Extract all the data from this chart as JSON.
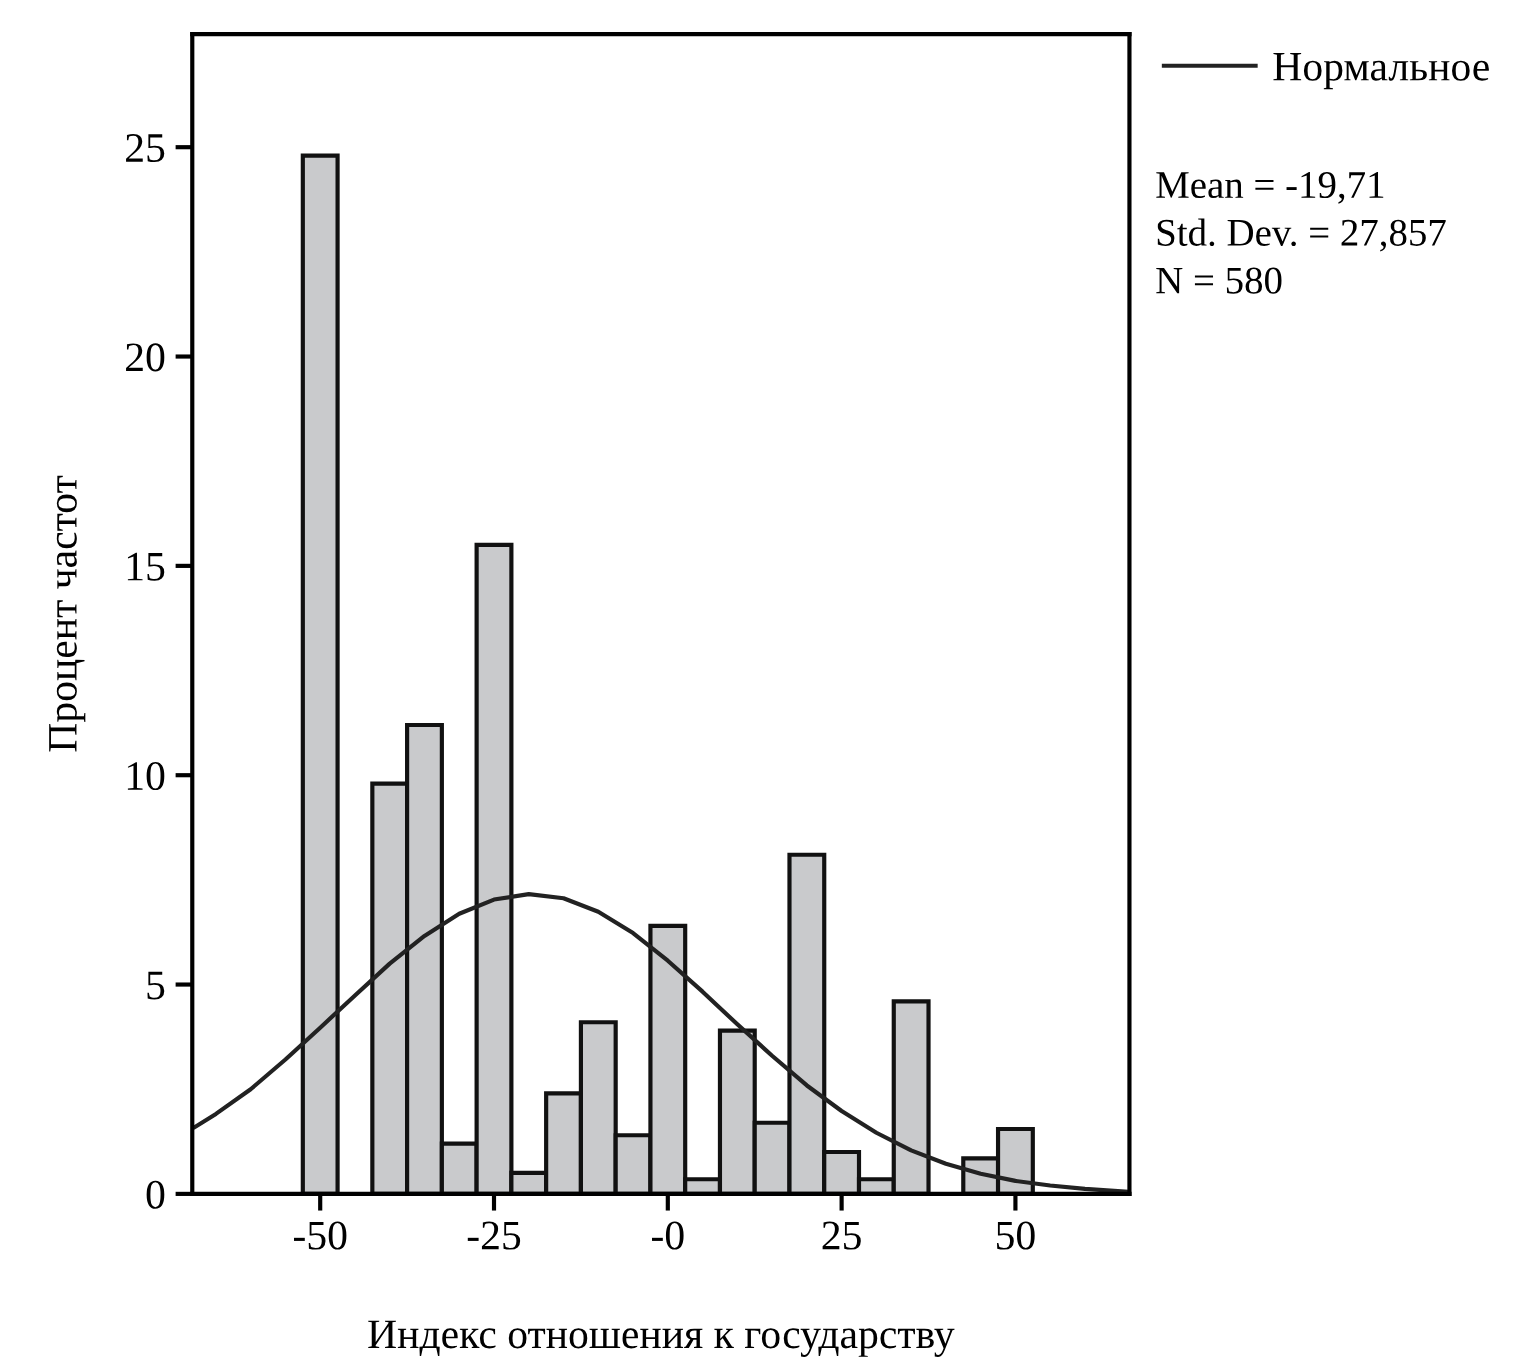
{
  "chart_data": {
    "type": "histogram",
    "xlabel": "Индекс отношения к государству",
    "ylabel": "Процент частот",
    "bins": [
      -52.5,
      -47.5,
      -42.5,
      -37.5,
      -32.5,
      -27.5,
      -22.5,
      -17.5,
      -12.5,
      -7.5,
      -2.5,
      2.5,
      7.5,
      12.5,
      17.5,
      22.5,
      27.5,
      32.5,
      37.5,
      42.5,
      47.5,
      52.5
    ],
    "series": [
      {
        "color": "#c9cacc",
        "values": [
          24.8,
          null,
          9.8,
          11.2,
          1.2,
          15.5,
          0.5,
          2.4,
          4.1,
          1.4,
          6.4,
          0.35,
          3.9,
          1.7,
          8.1,
          1.0,
          0.35,
          4.6,
          null,
          0.85,
          1.55
        ]
      },
      {
        "type": "line",
        "name": "Нормальное",
        "color": "#222222",
        "x": [
          -68,
          -65,
          -60,
          -55,
          -50,
          -45,
          -40,
          -35,
          -30,
          -25,
          -20,
          -15,
          -10,
          -5,
          0,
          5,
          10,
          15,
          20,
          25,
          30,
          35,
          40,
          45,
          50,
          55,
          60,
          66
        ],
        "values": [
          1.6,
          1.91,
          2.5,
          3.21,
          3.97,
          4.74,
          5.5,
          6.16,
          6.69,
          7.03,
          7.16,
          7.06,
          6.74,
          6.23,
          5.57,
          4.83,
          4.05,
          3.3,
          2.59,
          1.98,
          1.46,
          1.04,
          0.72,
          0.48,
          0.31,
          0.2,
          0.12,
          0.05
        ]
      }
    ],
    "xlim": [
      -68.4,
      66.4
    ],
    "ylim": [
      0,
      27.7
    ],
    "xticks": [
      -50,
      -25,
      {
        "value": 0,
        "label": "-0"
      },
      25,
      50
    ],
    "yticks": [
      0,
      5,
      10,
      15,
      20,
      25
    ],
    "annotations": [
      "Mean = -19,71",
      "Std. Dev. = 27,857",
      "N = 580"
    ],
    "legend": "top right",
    "grid": false,
    "marker": "none",
    "line_style": "solid"
  }
}
